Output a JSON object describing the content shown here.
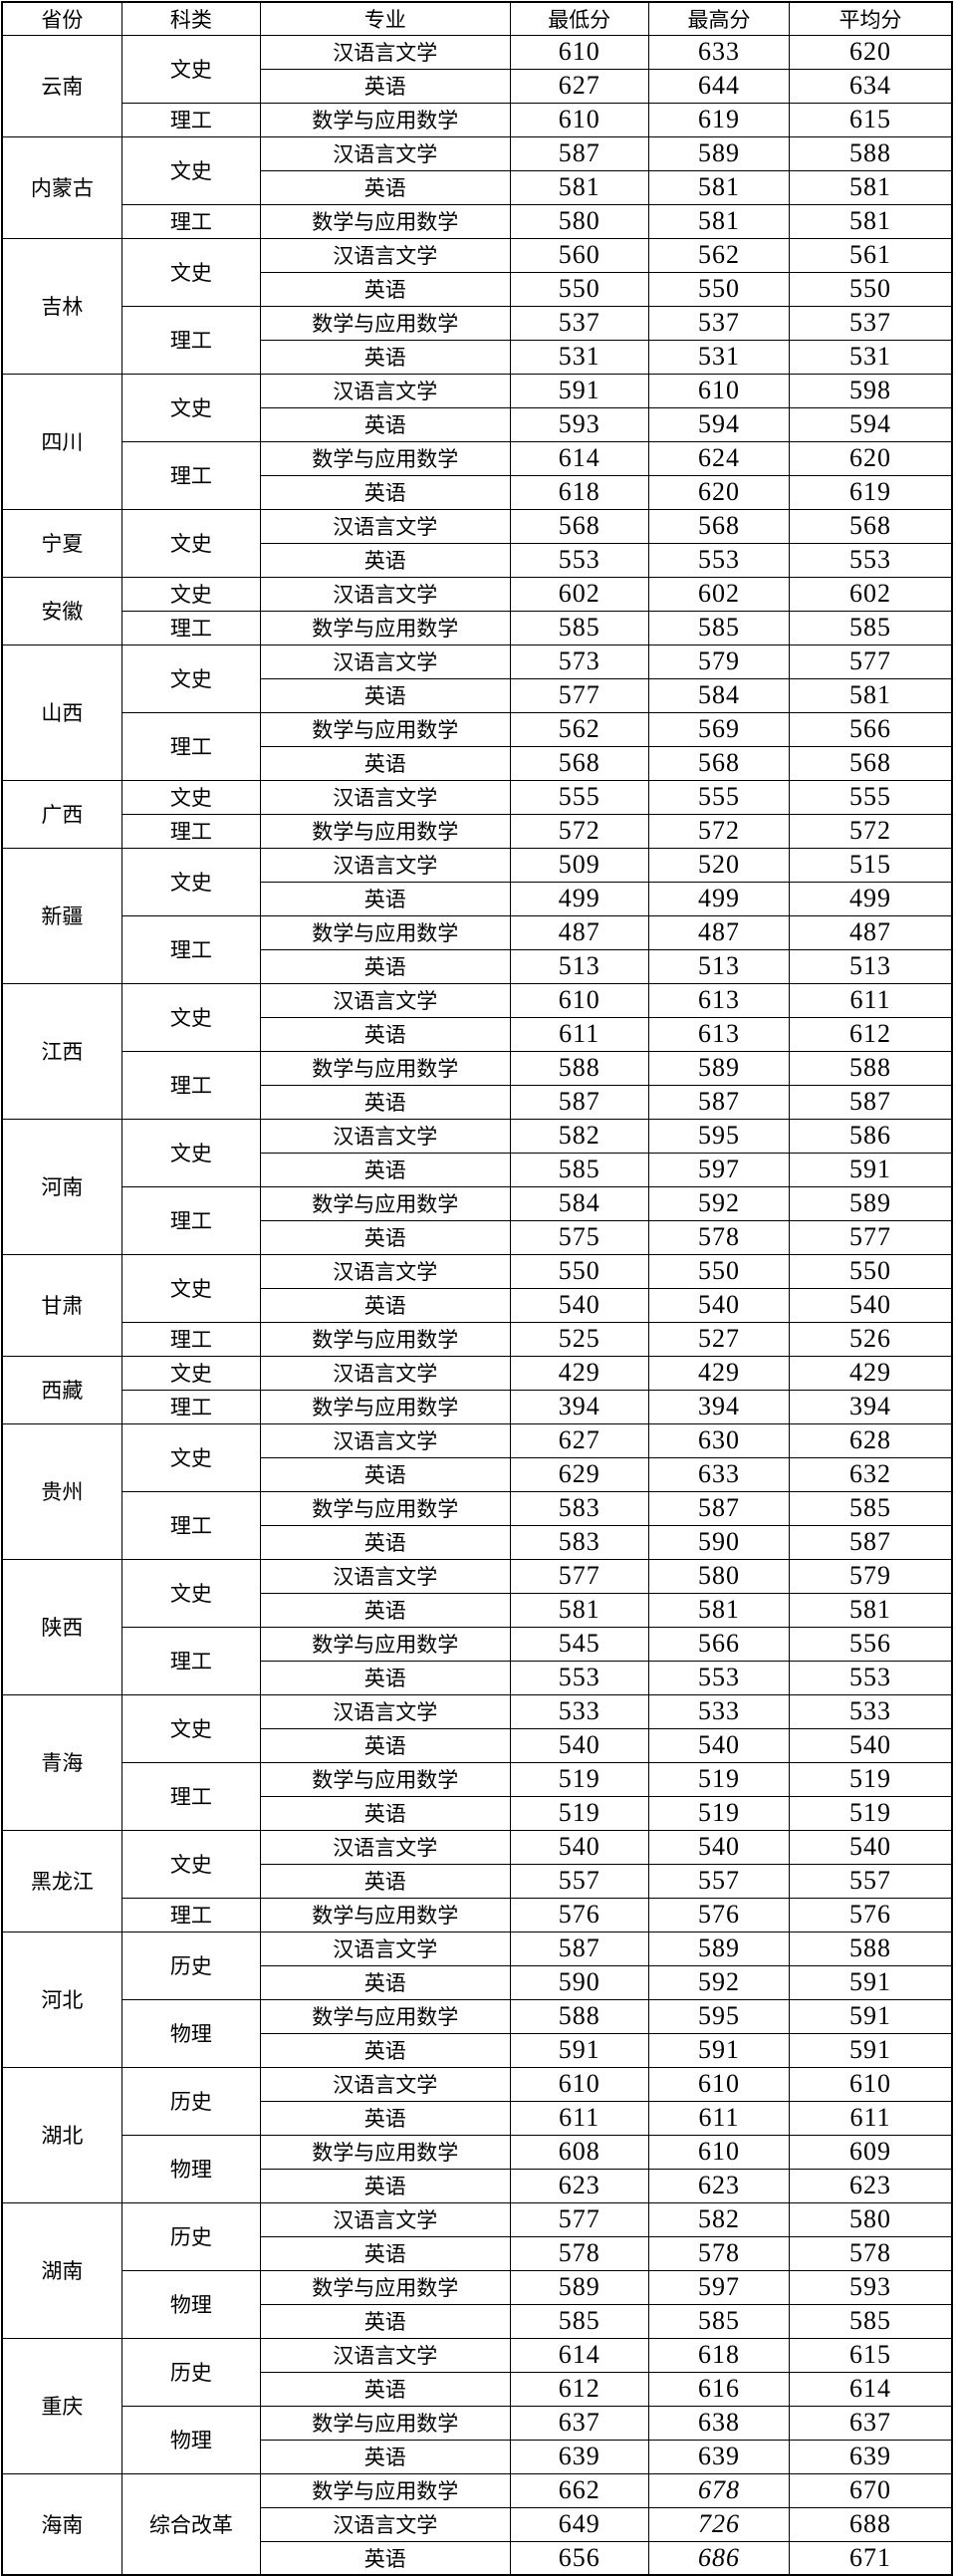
{
  "page": {
    "background": "#ffffff",
    "line_color": "#000000",
    "text_color": "#000000"
  },
  "table": {
    "headers": [
      "省份",
      "科类",
      "专业",
      "最低分",
      "最高分",
      "平均分"
    ],
    "provinces": [
      {
        "name": "云南",
        "groups": [
          {
            "category": "文史",
            "rows": [
              {
                "major": "汉语言文学",
                "min": "610",
                "max": "633",
                "avg": "620"
              },
              {
                "major": "英语",
                "min": "627",
                "max": "644",
                "avg": "634"
              }
            ]
          },
          {
            "category": "理工",
            "rows": [
              {
                "major": "数学与应用数学",
                "min": "610",
                "max": "619",
                "avg": "615"
              }
            ]
          }
        ]
      },
      {
        "name": "内蒙古",
        "groups": [
          {
            "category": "文史",
            "rows": [
              {
                "major": "汉语言文学",
                "min": "587",
                "max": "589",
                "avg": "588"
              },
              {
                "major": "英语",
                "min": "581",
                "max": "581",
                "avg": "581"
              }
            ]
          },
          {
            "category": "理工",
            "rows": [
              {
                "major": "数学与应用数学",
                "min": "580",
                "max": "581",
                "avg": "581"
              }
            ]
          }
        ]
      },
      {
        "name": "吉林",
        "groups": [
          {
            "category": "文史",
            "rows": [
              {
                "major": "汉语言文学",
                "min": "560",
                "max": "562",
                "avg": "561"
              },
              {
                "major": "英语",
                "min": "550",
                "max": "550",
                "avg": "550"
              }
            ]
          },
          {
            "category": "理工",
            "rows": [
              {
                "major": "数学与应用数学",
                "min": "537",
                "max": "537",
                "avg": "537"
              },
              {
                "major": "英语",
                "min": "531",
                "max": "531",
                "avg": "531"
              }
            ]
          }
        ]
      },
      {
        "name": "四川",
        "groups": [
          {
            "category": "文史",
            "rows": [
              {
                "major": "汉语言文学",
                "min": "591",
                "max": "610",
                "avg": "598"
              },
              {
                "major": "英语",
                "min": "593",
                "max": "594",
                "avg": "594"
              }
            ]
          },
          {
            "category": "理工",
            "rows": [
              {
                "major": "数学与应用数学",
                "min": "614",
                "max": "624",
                "avg": "620"
              },
              {
                "major": "英语",
                "min": "618",
                "max": "620",
                "avg": "619"
              }
            ]
          }
        ]
      },
      {
        "name": "宁夏",
        "groups": [
          {
            "category": "文史",
            "rows": [
              {
                "major": "汉语言文学",
                "min": "568",
                "max": "568",
                "avg": "568"
              },
              {
                "major": "英语",
                "min": "553",
                "max": "553",
                "avg": "553"
              }
            ]
          }
        ]
      },
      {
        "name": "安徽",
        "groups": [
          {
            "category": "文史",
            "rows": [
              {
                "major": "汉语言文学",
                "min": "602",
                "max": "602",
                "avg": "602"
              }
            ]
          },
          {
            "category": "理工",
            "rows": [
              {
                "major": "数学与应用数学",
                "min": "585",
                "max": "585",
                "avg": "585"
              }
            ]
          }
        ]
      },
      {
        "name": "山西",
        "groups": [
          {
            "category": "文史",
            "rows": [
              {
                "major": "汉语言文学",
                "min": "573",
                "max": "579",
                "avg": "577"
              },
              {
                "major": "英语",
                "min": "577",
                "max": "584",
                "avg": "581"
              }
            ]
          },
          {
            "category": "理工",
            "rows": [
              {
                "major": "数学与应用数学",
                "min": "562",
                "max": "569",
                "avg": "566"
              },
              {
                "major": "英语",
                "min": "568",
                "max": "568",
                "avg": "568"
              }
            ]
          }
        ]
      },
      {
        "name": "广西",
        "groups": [
          {
            "category": "文史",
            "rows": [
              {
                "major": "汉语言文学",
                "min": "555",
                "max": "555",
                "avg": "555"
              }
            ]
          },
          {
            "category": "理工",
            "rows": [
              {
                "major": "数学与应用数学",
                "min": "572",
                "max": "572",
                "avg": "572"
              }
            ]
          }
        ]
      },
      {
        "name": "新疆",
        "groups": [
          {
            "category": "文史",
            "rows": [
              {
                "major": "汉语言文学",
                "min": "509",
                "max": "520",
                "avg": "515"
              },
              {
                "major": "英语",
                "min": "499",
                "max": "499",
                "avg": "499"
              }
            ]
          },
          {
            "category": "理工",
            "rows": [
              {
                "major": "数学与应用数学",
                "min": "487",
                "max": "487",
                "avg": "487"
              },
              {
                "major": "英语",
                "min": "513",
                "max": "513",
                "avg": "513"
              }
            ]
          }
        ]
      },
      {
        "name": "江西",
        "groups": [
          {
            "category": "文史",
            "rows": [
              {
                "major": "汉语言文学",
                "min": "610",
                "max": "613",
                "avg": "611"
              },
              {
                "major": "英语",
                "min": "611",
                "max": "613",
                "avg": "612"
              }
            ]
          },
          {
            "category": "理工",
            "rows": [
              {
                "major": "数学与应用数学",
                "min": "588",
                "max": "589",
                "avg": "588"
              },
              {
                "major": "英语",
                "min": "587",
                "max": "587",
                "avg": "587"
              }
            ]
          }
        ]
      },
      {
        "name": "河南",
        "groups": [
          {
            "category": "文史",
            "rows": [
              {
                "major": "汉语言文学",
                "min": "582",
                "max": "595",
                "avg": "586"
              },
              {
                "major": "英语",
                "min": "585",
                "max": "597",
                "avg": "591"
              }
            ]
          },
          {
            "category": "理工",
            "rows": [
              {
                "major": "数学与应用数学",
                "min": "584",
                "max": "592",
                "avg": "589"
              },
              {
                "major": "英语",
                "min": "575",
                "max": "578",
                "avg": "577"
              }
            ]
          }
        ]
      },
      {
        "name": "甘肃",
        "groups": [
          {
            "category": "文史",
            "rows": [
              {
                "major": "汉语言文学",
                "min": "550",
                "max": "550",
                "avg": "550"
              },
              {
                "major": "英语",
                "min": "540",
                "max": "540",
                "avg": "540"
              }
            ]
          },
          {
            "category": "理工",
            "rows": [
              {
                "major": "数学与应用数学",
                "min": "525",
                "max": "527",
                "avg": "526"
              }
            ]
          }
        ]
      },
      {
        "name": "西藏",
        "groups": [
          {
            "category": "文史",
            "rows": [
              {
                "major": "汉语言文学",
                "min": "429",
                "max": "429",
                "avg": "429"
              }
            ]
          },
          {
            "category": "理工",
            "rows": [
              {
                "major": "数学与应用数学",
                "min": "394",
                "max": "394",
                "avg": "394"
              }
            ]
          }
        ]
      },
      {
        "name": "贵州",
        "groups": [
          {
            "category": "文史",
            "rows": [
              {
                "major": "汉语言文学",
                "min": "627",
                "max": "630",
                "avg": "628"
              },
              {
                "major": "英语",
                "min": "629",
                "max": "633",
                "avg": "632"
              }
            ]
          },
          {
            "category": "理工",
            "rows": [
              {
                "major": "数学与应用数学",
                "min": "583",
                "max": "587",
                "avg": "585"
              },
              {
                "major": "英语",
                "min": "583",
                "max": "590",
                "avg": "587"
              }
            ]
          }
        ]
      },
      {
        "name": "陕西",
        "groups": [
          {
            "category": "文史",
            "rows": [
              {
                "major": "汉语言文学",
                "min": "577",
                "max": "580",
                "avg": "579"
              },
              {
                "major": "英语",
                "min": "581",
                "max": "581",
                "avg": "581"
              }
            ]
          },
          {
            "category": "理工",
            "rows": [
              {
                "major": "数学与应用数学",
                "min": "545",
                "max": "566",
                "avg": "556"
              },
              {
                "major": "英语",
                "min": "553",
                "max": "553",
                "avg": "553"
              }
            ]
          }
        ]
      },
      {
        "name": "青海",
        "groups": [
          {
            "category": "文史",
            "rows": [
              {
                "major": "汉语言文学",
                "min": "533",
                "max": "533",
                "avg": "533"
              },
              {
                "major": "英语",
                "min": "540",
                "max": "540",
                "avg": "540"
              }
            ]
          },
          {
            "category": "理工",
            "rows": [
              {
                "major": "数学与应用数学",
                "min": "519",
                "max": "519",
                "avg": "519"
              },
              {
                "major": "英语",
                "min": "519",
                "max": "519",
                "avg": "519"
              }
            ]
          }
        ]
      },
      {
        "name": "黑龙江",
        "groups": [
          {
            "category": "文史",
            "rows": [
              {
                "major": "汉语言文学",
                "min": "540",
                "max": "540",
                "avg": "540"
              },
              {
                "major": "英语",
                "min": "557",
                "max": "557",
                "avg": "557"
              }
            ]
          },
          {
            "category": "理工",
            "rows": [
              {
                "major": "数学与应用数学",
                "min": "576",
                "max": "576",
                "avg": "576"
              }
            ]
          }
        ]
      },
      {
        "name": "河北",
        "groups": [
          {
            "category": "历史",
            "rows": [
              {
                "major": "汉语言文学",
                "min": "587",
                "max": "589",
                "avg": "588"
              },
              {
                "major": "英语",
                "min": "590",
                "max": "592",
                "avg": "591"
              }
            ]
          },
          {
            "category": "物理",
            "rows": [
              {
                "major": "数学与应用数学",
                "min": "588",
                "max": "595",
                "avg": "591"
              },
              {
                "major": "英语",
                "min": "591",
                "max": "591",
                "avg": "591"
              }
            ]
          }
        ]
      },
      {
        "name": "湖北",
        "groups": [
          {
            "category": "历史",
            "rows": [
              {
                "major": "汉语言文学",
                "min": "610",
                "max": "610",
                "avg": "610"
              },
              {
                "major": "英语",
                "min": "611",
                "max": "611",
                "avg": "611"
              }
            ]
          },
          {
            "category": "物理",
            "rows": [
              {
                "major": "数学与应用数学",
                "min": "608",
                "max": "610",
                "avg": "609"
              },
              {
                "major": "英语",
                "min": "623",
                "max": "623",
                "avg": "623"
              }
            ]
          }
        ]
      },
      {
        "name": "湖南",
        "groups": [
          {
            "category": "历史",
            "rows": [
              {
                "major": "汉语言文学",
                "min": "577",
                "max": "582",
                "avg": "580"
              },
              {
                "major": "英语",
                "min": "578",
                "max": "578",
                "avg": "578"
              }
            ]
          },
          {
            "category": "物理",
            "rows": [
              {
                "major": "数学与应用数学",
                "min": "589",
                "max": "597",
                "avg": "593"
              },
              {
                "major": "英语",
                "min": "585",
                "max": "585",
                "avg": "585"
              }
            ]
          }
        ]
      },
      {
        "name": "重庆",
        "groups": [
          {
            "category": "历史",
            "rows": [
              {
                "major": "汉语言文学",
                "min": "614",
                "max": "618",
                "avg": "615"
              },
              {
                "major": "英语",
                "min": "612",
                "max": "616",
                "avg": "614"
              }
            ]
          },
          {
            "category": "物理",
            "rows": [
              {
                "major": "数学与应用数学",
                "min": "637",
                "max": "638",
                "avg": "637"
              },
              {
                "major": "英语",
                "min": "639",
                "max": "639",
                "avg": "639"
              }
            ]
          }
        ]
      },
      {
        "name": "海南",
        "groups": [
          {
            "category": "综合改革",
            "rows": [
              {
                "major": "数学与应用数学",
                "min": "662",
                "max": "678",
                "avg": "670",
                "max_italic": true
              },
              {
                "major": "汉语言文学",
                "min": "649",
                "max": "726",
                "avg": "688",
                "max_italic": true
              },
              {
                "major": "英语",
                "min": "656",
                "max": "686",
                "avg": "671",
                "max_italic": true
              }
            ]
          }
        ]
      }
    ]
  }
}
